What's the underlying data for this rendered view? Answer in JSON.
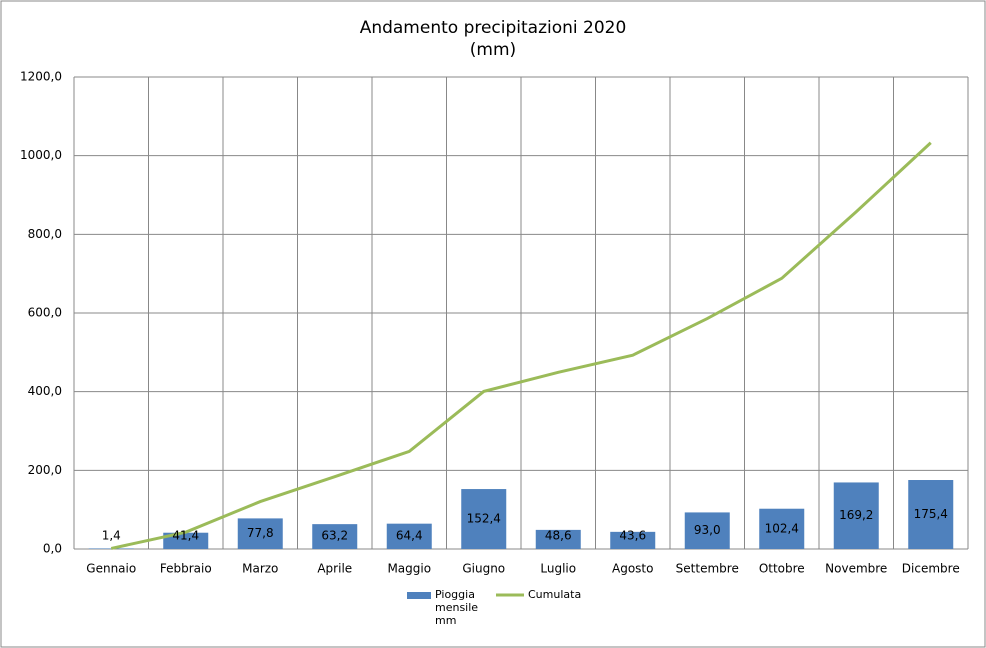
{
  "chart_data": {
    "type": "bar",
    "title": "Andamento precipitazioni 2020",
    "subtitle": "(mm)",
    "categories": [
      "Gennaio",
      "Febbraio",
      "Marzo",
      "Aprile",
      "Maggio",
      "Giugno",
      "Luglio",
      "Agosto",
      "Settembre",
      "Ottobre",
      "Novembre",
      "Dicembre"
    ],
    "series": [
      {
        "name": "Pioggia mensile mm",
        "type": "bar",
        "color": "#4f81bd",
        "values": [
          1.4,
          41.4,
          77.8,
          63.2,
          64.4,
          152.4,
          48.6,
          43.6,
          93.0,
          102.4,
          169.2,
          175.4
        ],
        "value_labels": [
          "1,4",
          "41,4",
          "77,8",
          "63,2",
          "64,4",
          "152,4",
          "48,6",
          "43,6",
          "93,0",
          "102,4",
          "169,2",
          "175,4"
        ]
      },
      {
        "name": "Cumulata",
        "type": "line",
        "color": "#9bbb59",
        "values": [
          1.4,
          42.8,
          120.6,
          183.8,
          248.2,
          400.6,
          449.2,
          492.8,
          585.8,
          688.2,
          857.4,
          1032.8
        ]
      }
    ],
    "ylim": [
      0,
      1200
    ],
    "yticks": [
      {
        "value": 0,
        "label": "0,0"
      },
      {
        "value": 200,
        "label": "200,0"
      },
      {
        "value": 400,
        "label": "400,0"
      },
      {
        "value": 600,
        "label": "600,0"
      },
      {
        "value": 800,
        "label": "800,0"
      },
      {
        "value": 1000,
        "label": "1000,0"
      },
      {
        "value": 1200,
        "label": "1200,0"
      }
    ],
    "grid": true,
    "legend": "bottom"
  }
}
